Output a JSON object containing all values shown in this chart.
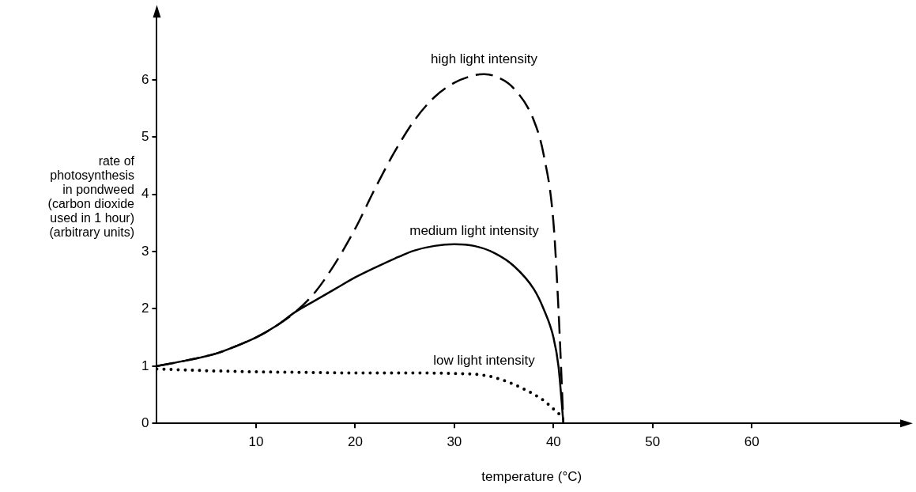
{
  "chart_data": {
    "type": "line",
    "xlabel": "temperature (°C)",
    "ylabel": "rate of photosynthesis in pondweed (carbon dioxide used in 1 hour) (arbitrary units)",
    "xlim": [
      0,
      75.6
    ],
    "xticks": [
      10,
      20,
      30,
      40,
      50,
      60
    ],
    "ylim": [
      0,
      7.2
    ],
    "yticks": [
      0,
      1,
      2,
      3,
      4,
      5,
      6
    ],
    "grid": false,
    "legend": false,
    "marker": "none",
    "series": [
      {
        "name": "high light intensity",
        "color": "#000000",
        "line_style": "dashed",
        "x": [
          0,
          3,
          6,
          8,
          10,
          12,
          14,
          16,
          18,
          20,
          22,
          24,
          26,
          28,
          30,
          32,
          33,
          34,
          36,
          38,
          39,
          40,
          40.5,
          41
        ],
        "values": [
          1.0,
          1.1,
          1.22,
          1.35,
          1.5,
          1.7,
          1.95,
          2.3,
          2.8,
          3.4,
          4.1,
          4.75,
          5.3,
          5.7,
          5.95,
          6.08,
          6.1,
          6.07,
          5.85,
          5.3,
          4.7,
          3.5,
          2.0,
          0
        ]
      },
      {
        "name": "medium light intensity",
        "color": "#000000",
        "line_style": "solid",
        "x": [
          0,
          3,
          6,
          8,
          10,
          12,
          14,
          16,
          18,
          20,
          22,
          24,
          26,
          28,
          30,
          32,
          34,
          36,
          38,
          39,
          40,
          40.5,
          41
        ],
        "values": [
          1.0,
          1.1,
          1.22,
          1.35,
          1.5,
          1.7,
          1.95,
          2.15,
          2.35,
          2.55,
          2.72,
          2.88,
          3.02,
          3.1,
          3.13,
          3.1,
          2.98,
          2.75,
          2.35,
          2.0,
          1.5,
          1.0,
          0
        ]
      },
      {
        "name": "low light intensity",
        "color": "#000000",
        "line_style": "dotted",
        "x": [
          0,
          5,
          10,
          15,
          20,
          25,
          30,
          33,
          35,
          37,
          39,
          40,
          41
        ],
        "values": [
          0.95,
          0.92,
          0.9,
          0.89,
          0.88,
          0.88,
          0.87,
          0.84,
          0.75,
          0.6,
          0.4,
          0.25,
          0.1
        ]
      }
    ]
  }
}
